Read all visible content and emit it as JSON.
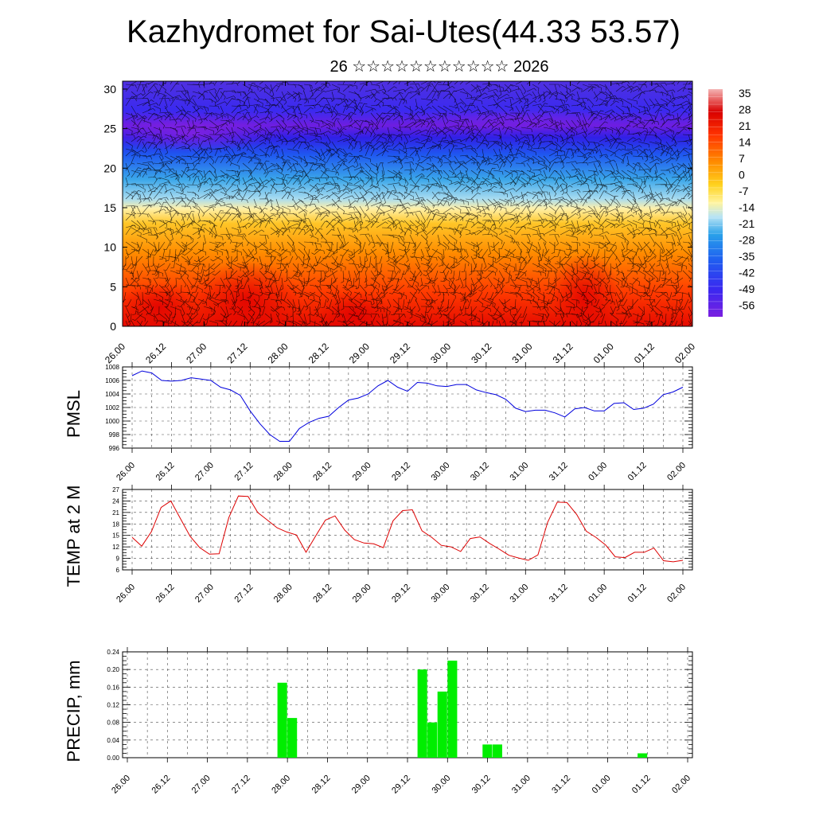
{
  "title": "Kazhydromet for Sai-Utes(44.33 53.57)",
  "subtitle": "26 ☆☆☆☆☆☆☆☆☆☆☆ 2026",
  "colors": {
    "pmsl_line": "#0000dd",
    "temp_line": "#dd0000",
    "precip_bar": "#00ee00",
    "grid": "#000000",
    "wind_barb": "#000000"
  },
  "chart_data": [
    {
      "id": "cross_section",
      "type": "heatmap",
      "title": "",
      "ylabel": "",
      "ylim": [
        0,
        31
      ],
      "yticks": [
        0,
        5,
        10,
        15,
        20,
        25,
        30
      ],
      "xticks": [
        "26.00",
        "26.12",
        "27.00",
        "27.12",
        "28.00",
        "28.12",
        "29.00",
        "29.12",
        "30.00",
        "30.12",
        "31.00",
        "31.12",
        "01.00",
        "01.12",
        "02.00"
      ],
      "colorbar": {
        "labels": [
          "35",
          "28",
          "21",
          "14",
          "7",
          "0",
          "-7",
          "-14",
          "-21",
          "-28",
          "-35",
          "-42",
          "-49",
          "-56"
        ],
        "range": [
          -63,
          42
        ]
      },
      "overlay": "wind barbs"
    },
    {
      "id": "pmsl",
      "type": "line",
      "ylabel": "PMSL",
      "ylim": [
        996,
        1008
      ],
      "yticks": [
        "996",
        "998",
        "1000",
        "1002",
        "1004",
        "1006",
        "1008"
      ],
      "xticks": [
        "26.00",
        "26.12",
        "27.00",
        "27.12",
        "28.00",
        "28.12",
        "29.00",
        "29.12",
        "30.00",
        "30.12",
        "31.00",
        "31.12",
        "01.00",
        "01.12",
        "02.00"
      ],
      "values": [
        1006.7,
        1007.4,
        1007.1,
        1006.0,
        1005.9,
        1006.0,
        1006.4,
        1006.2,
        1006.0,
        1005.0,
        1004.6,
        1003.8,
        1001.5,
        999.6,
        998.0,
        997.0,
        997.0,
        998.9,
        999.8,
        1000.4,
        1000.7,
        1002.0,
        1003.1,
        1003.4,
        1004.0,
        1005.2,
        1006.0,
        1005.0,
        1004.4,
        1005.7,
        1005.6,
        1005.2,
        1005.1,
        1005.4,
        1005.4,
        1004.6,
        1004.2,
        1003.9,
        1003.2,
        1001.9,
        1001.4,
        1001.6,
        1001.6,
        1001.2,
        1000.6,
        1001.8,
        1002.0,
        1001.5,
        1001.5,
        1002.6,
        1002.7,
        1001.7,
        1001.9,
        1002.5,
        1003.9,
        1004.3,
        1005.0
      ]
    },
    {
      "id": "temp",
      "type": "line",
      "ylabel": "TEMP at 2 M",
      "ylim": [
        6,
        27
      ],
      "yticks": [
        "6",
        "9",
        "12",
        "15",
        "18",
        "21",
        "24",
        "27"
      ],
      "xticks": [
        "26.00",
        "26.12",
        "27.00",
        "27.12",
        "28.00",
        "28.12",
        "29.00",
        "29.12",
        "30.00",
        "30.12",
        "31.00",
        "31.12",
        "01.00",
        "01.12",
        "02.00"
      ],
      "values": [
        14.5,
        12.2,
        16.0,
        22.3,
        24.0,
        19.4,
        14.8,
        11.8,
        10.1,
        10.2,
        19.6,
        25.3,
        25.2,
        21.0,
        19.0,
        17.0,
        15.9,
        15.1,
        10.6,
        14.9,
        19.0,
        20.1,
        16.4,
        13.9,
        13.0,
        12.8,
        11.8,
        18.8,
        21.5,
        21.7,
        16.2,
        14.5,
        12.4,
        12.0,
        10.8,
        14.2,
        14.6,
        12.9,
        11.4,
        9.8,
        9.1,
        8.5,
        9.9,
        18.4,
        23.7,
        23.6,
        20.5,
        16.1,
        14.5,
        12.5,
        9.4,
        9.2,
        10.6,
        10.6,
        11.7,
        8.4,
        8.1,
        8.5
      ]
    },
    {
      "id": "precip",
      "type": "bar",
      "ylabel": "PRECIP, mm",
      "ylim": [
        0,
        0.24
      ],
      "yticks": [
        "0.00",
        "0.04",
        "0.08",
        "0.12",
        "0.16",
        "0.20",
        "0.24"
      ],
      "xticks": [
        "26.00",
        "26.12",
        "27.00",
        "27.12",
        "28.00",
        "28.12",
        "29.00",
        "29.12",
        "30.00",
        "30.12",
        "31.00",
        "31.12",
        "01.00",
        "01.12",
        "02.00"
      ],
      "bars": [
        {
          "t": 15.0,
          "value": 0.17
        },
        {
          "t": 16.0,
          "value": 0.09
        },
        {
          "t": 29.0,
          "value": 0.2
        },
        {
          "t": 30.0,
          "value": 0.08
        },
        {
          "t": 31.0,
          "value": 0.15
        },
        {
          "t": 32.0,
          "value": 0.22
        },
        {
          "t": 35.5,
          "value": 0.03
        },
        {
          "t": 36.5,
          "value": 0.03
        },
        {
          "t": 51.0,
          "value": 0.01
        }
      ]
    }
  ]
}
